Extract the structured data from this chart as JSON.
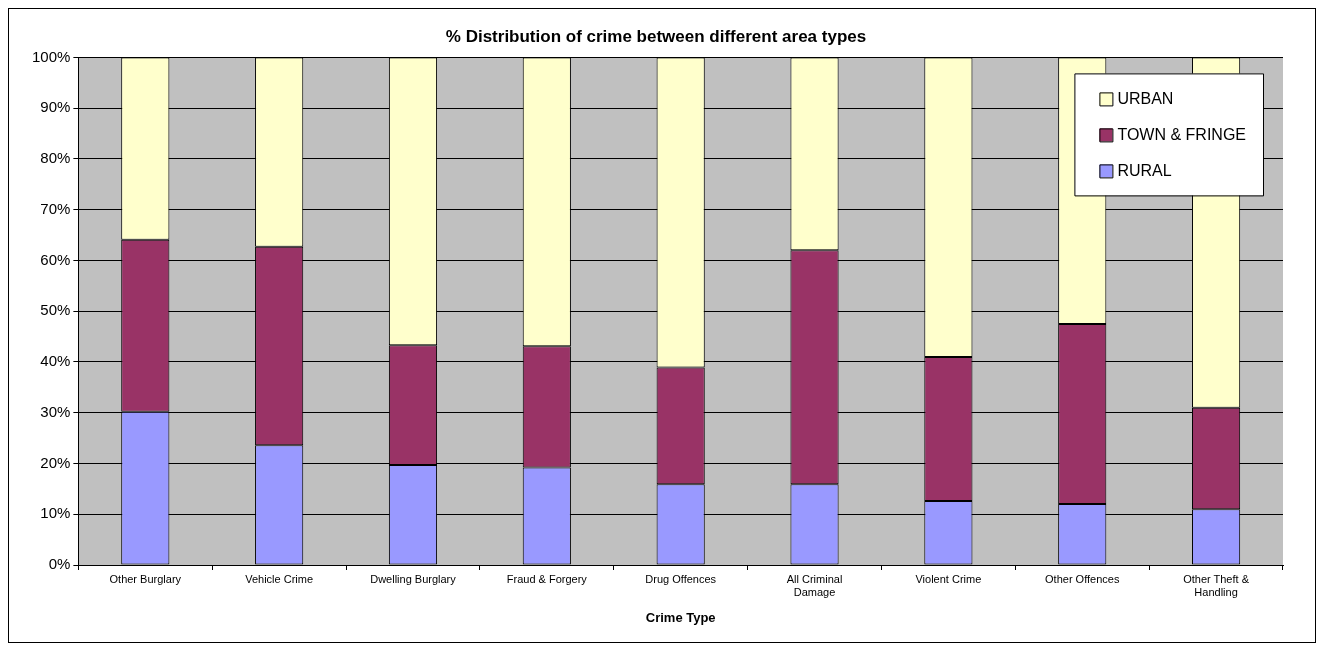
{
  "chart_data": {
    "type": "bar",
    "title": "% Distribution of crime between different area types",
    "xlabel": "Crime Type",
    "categories": [
      "Other Burglary",
      "Vehicle Crime",
      "Dwelling Burglary",
      "Fraud & Forgery",
      "Drug Offences",
      "All Criminal Damage",
      "Violent Crime",
      "Other Offences",
      "Other Theft & Handling"
    ],
    "series": [
      {
        "name": "RURAL",
        "color": "#9999ff",
        "values": [
          30.2,
          23.6,
          19.7,
          19.2,
          15.9,
          15.9,
          12.6,
          12.0,
          11.0
        ]
      },
      {
        "name": "TOWN & FRINGE",
        "color": "#993366",
        "values": [
          33.9,
          39.1,
          23.6,
          23.9,
          23.0,
          46.1,
          28.4,
          35.5,
          20.0
        ]
      },
      {
        "name": "URBAN",
        "color": "#ffffcc",
        "values": [
          35.9,
          37.3,
          56.7,
          56.9,
          61.1,
          38.0,
          59.0,
          52.5,
          69.0
        ]
      }
    ],
    "stacked": true,
    "ylim": [
      0,
      100
    ],
    "yticks": [
      {
        "value": 0,
        "label": "0%"
      },
      {
        "value": 10,
        "label": "10%"
      },
      {
        "value": 20,
        "label": "20%"
      },
      {
        "value": 30,
        "label": "30%"
      },
      {
        "value": 40,
        "label": "40%"
      },
      {
        "value": 50,
        "label": "50%"
      },
      {
        "value": 60,
        "label": "60%"
      },
      {
        "value": 70,
        "label": "70%"
      },
      {
        "value": 80,
        "label": "80%"
      },
      {
        "value": 90,
        "label": "90%"
      },
      {
        "value": 100,
        "label": "100%"
      }
    ],
    "grid": "y",
    "legend": "top right"
  }
}
